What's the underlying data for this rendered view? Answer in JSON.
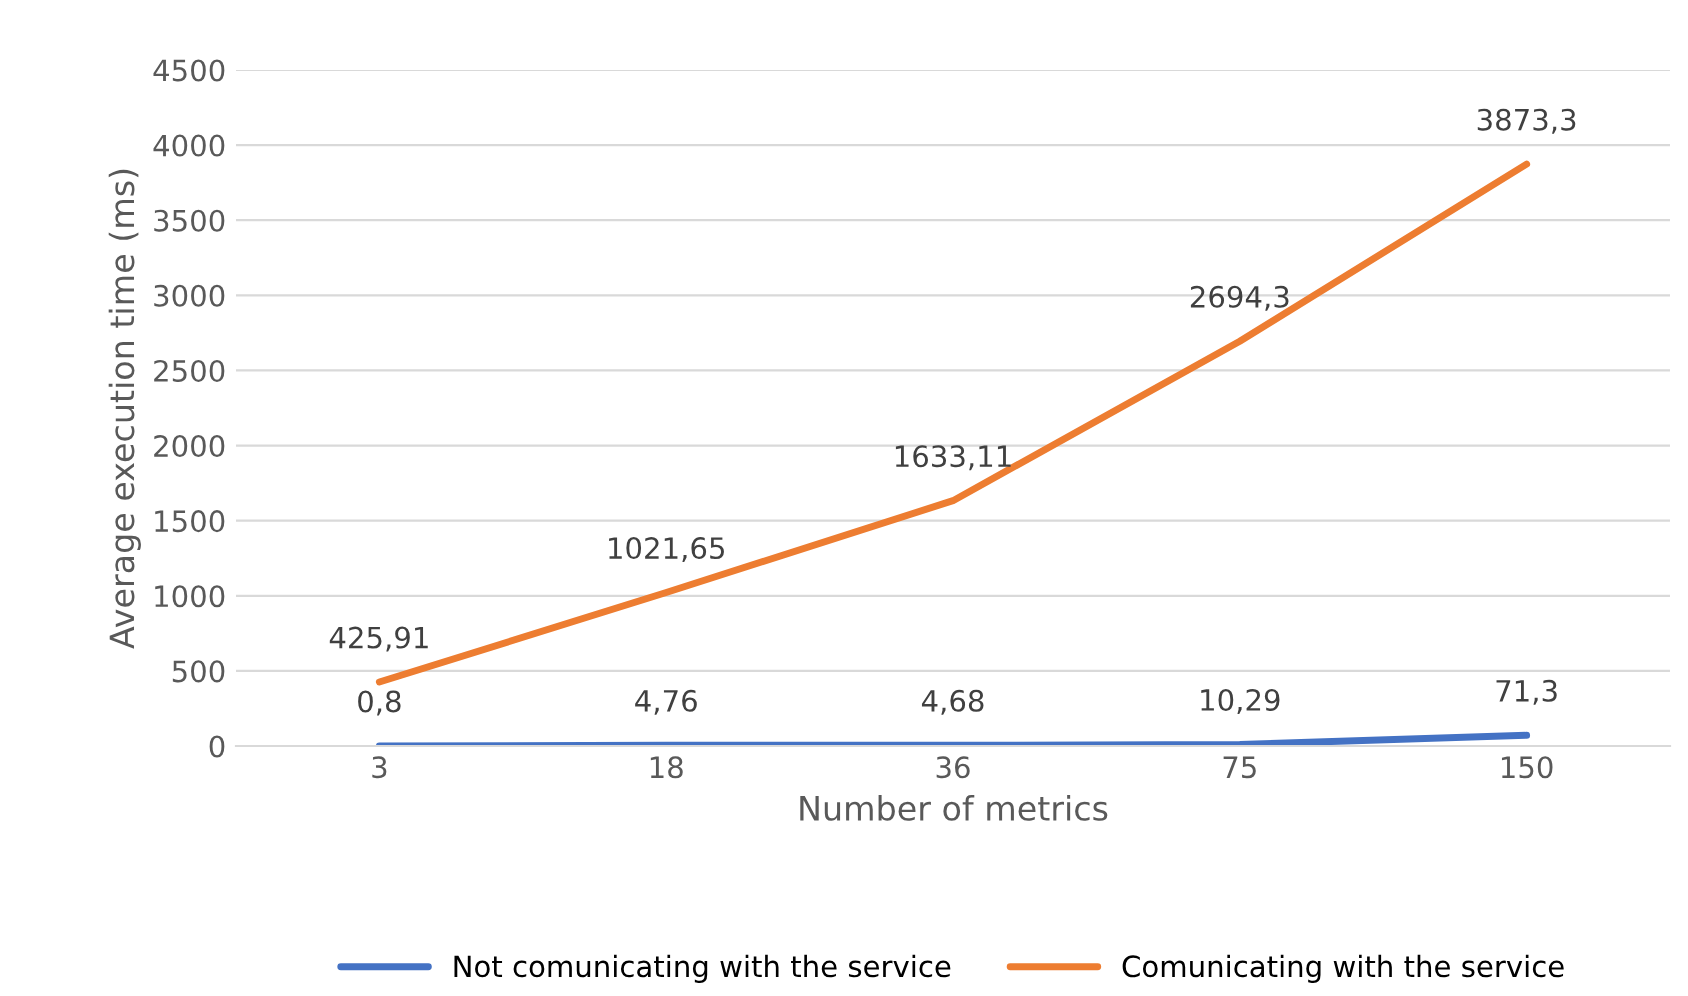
{
  "chart_data": {
    "type": "line",
    "xlabel": "Number of metrics",
    "ylabel": "Average execution time (ms)",
    "categories": [
      "3",
      "18",
      "36",
      "75",
      "150"
    ],
    "series": [
      {
        "name": "Not comunicating with the service",
        "color": "#4472c4",
        "values": [
          0.8,
          4.76,
          4.68,
          10.29,
          71.3
        ],
        "value_labels": [
          "0,8",
          "4,76",
          "4,68",
          "10,29",
          "71,3"
        ]
      },
      {
        "name": "Comunicating with the service",
        "color": "#ed7d31",
        "values": [
          425.91,
          1021.65,
          1633.11,
          2694.3,
          3873.3
        ],
        "value_labels": [
          "425,91",
          "1021,65",
          "1633,11",
          "2694,3",
          "3873,3"
        ]
      }
    ],
    "ylim": [
      0,
      4500
    ],
    "yticks": [
      0,
      500,
      1000,
      1500,
      2000,
      2500,
      3000,
      3500,
      4000,
      4500
    ],
    "grid": "y",
    "legend": "bottom",
    "marker": "none",
    "line_style": "solid"
  }
}
